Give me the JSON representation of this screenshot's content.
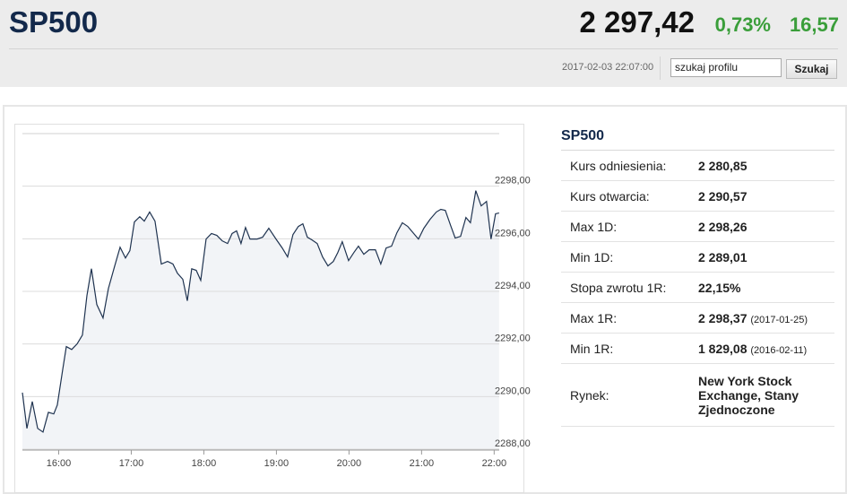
{
  "header": {
    "title": "SP500",
    "price": "2 297,42",
    "change_pct": "0,73%",
    "change": "16,57",
    "timestamp": "2017-02-03 22:07:00"
  },
  "search": {
    "input": "szukaj profilu",
    "button": "Szukaj"
  },
  "table": {
    "title": "SP500",
    "rows": [
      {
        "label": "Kurs odniesienia:",
        "value": "2 280,85"
      },
      {
        "label": "Kurs otwarcia:",
        "value": "2 290,57"
      },
      {
        "label": "Max 1D:",
        "value": "2 298,26"
      },
      {
        "label": "Min 1D:",
        "value": "2 289,01"
      },
      {
        "label": "Stopa zwrotu 1R:",
        "value": "22,15%"
      },
      {
        "label": "Max 1R:",
        "value": "2 298,37",
        "note": "(2017-01-25)"
      },
      {
        "label": "Min 1R:",
        "value": "1 829,08",
        "note": "(2016-02-11)"
      },
      {
        "label": "Rynek:",
        "value": "New York Stock Exchange, Stany Zjednoczone"
      }
    ]
  },
  "chart_data": {
    "type": "line",
    "x": [
      15.5,
      15.562,
      15.636,
      15.71,
      15.784,
      15.858,
      15.932,
      15.981,
      16.056,
      16.105,
      16.179,
      16.253,
      16.327,
      16.389,
      16.451,
      16.525,
      16.611,
      16.685,
      16.772,
      16.846,
      16.92,
      16.981,
      17.043,
      17.117,
      17.179,
      17.253,
      17.327,
      17.414,
      17.5,
      17.574,
      17.636,
      17.71,
      17.772,
      17.833,
      17.895,
      17.957,
      18.031,
      18.105,
      18.179,
      18.253,
      18.327,
      18.389,
      18.451,
      18.512,
      18.574,
      18.636,
      18.735,
      18.809,
      18.895,
      18.994,
      19.08,
      19.154,
      19.228,
      19.302,
      19.364,
      19.426,
      19.488,
      19.562,
      19.636,
      19.71,
      19.784,
      19.846,
      19.907,
      19.994,
      20.068,
      20.13,
      20.204,
      20.278,
      20.364,
      20.438,
      20.512,
      20.586,
      20.66,
      20.735,
      20.809,
      20.883,
      20.957,
      21.031,
      21.117,
      21.204,
      21.265,
      21.327,
      21.401,
      21.463,
      21.537,
      21.611,
      21.673,
      21.747,
      21.821,
      21.895,
      21.957,
      22.019,
      22.068
    ],
    "series": [
      {
        "color": "#1f3350",
        "values": [
          2290.15,
          2288.79,
          2289.81,
          2288.79,
          2288.65,
          2289.4,
          2289.34,
          2289.68,
          2291.04,
          2291.9,
          2291.79,
          2292.0,
          2292.34,
          2293.84,
          2294.86,
          2293.5,
          2292.99,
          2294.11,
          2294.97,
          2295.68,
          2295.27,
          2295.55,
          2296.64,
          2296.84,
          2296.67,
          2297.02,
          2296.67,
          2295.04,
          2295.14,
          2295.04,
          2294.69,
          2294.46,
          2293.64,
          2294.86,
          2294.8,
          2294.42,
          2295.99,
          2296.2,
          2296.13,
          2295.92,
          2295.82,
          2296.2,
          2296.3,
          2295.82,
          2296.43,
          2295.99,
          2295.99,
          2296.06,
          2296.4,
          2295.99,
          2295.65,
          2295.31,
          2296.16,
          2296.47,
          2296.57,
          2296.06,
          2295.96,
          2295.82,
          2295.31,
          2294.97,
          2295.14,
          2295.48,
          2295.89,
          2295.17,
          2295.48,
          2295.72,
          2295.41,
          2295.58,
          2295.58,
          2295.04,
          2295.65,
          2295.72,
          2296.23,
          2296.61,
          2296.47,
          2296.23,
          2295.99,
          2296.4,
          2296.74,
          2297.02,
          2297.12,
          2297.08,
          2296.5,
          2296.03,
          2296.09,
          2296.81,
          2296.61,
          2297.83,
          2297.25,
          2297.42,
          2295.99,
          2296.95,
          2296.98
        ]
      }
    ],
    "area_color": "#f2f4f7",
    "xlim": [
      15.5,
      22.07
    ],
    "xticks": [
      {
        "value": 16,
        "label": "16:00"
      },
      {
        "value": 17,
        "label": "17:00"
      },
      {
        "value": 18,
        "label": "18:00"
      },
      {
        "value": 19,
        "label": "19:00"
      },
      {
        "value": 20,
        "label": "20:00"
      },
      {
        "value": 21,
        "label": "21:00"
      },
      {
        "value": 22,
        "label": "22:00"
      }
    ],
    "ylim": [
      2288,
      2300
    ],
    "yticks": [
      {
        "value": 2288,
        "label": "2288,00"
      },
      {
        "value": 2290,
        "label": "2290,00"
      },
      {
        "value": 2292,
        "label": "2292,00"
      },
      {
        "value": 2294,
        "label": "2294,00"
      },
      {
        "value": 2296,
        "label": "2296,00"
      },
      {
        "value": 2298,
        "label": "2298,00"
      }
    ],
    "grid": true
  }
}
